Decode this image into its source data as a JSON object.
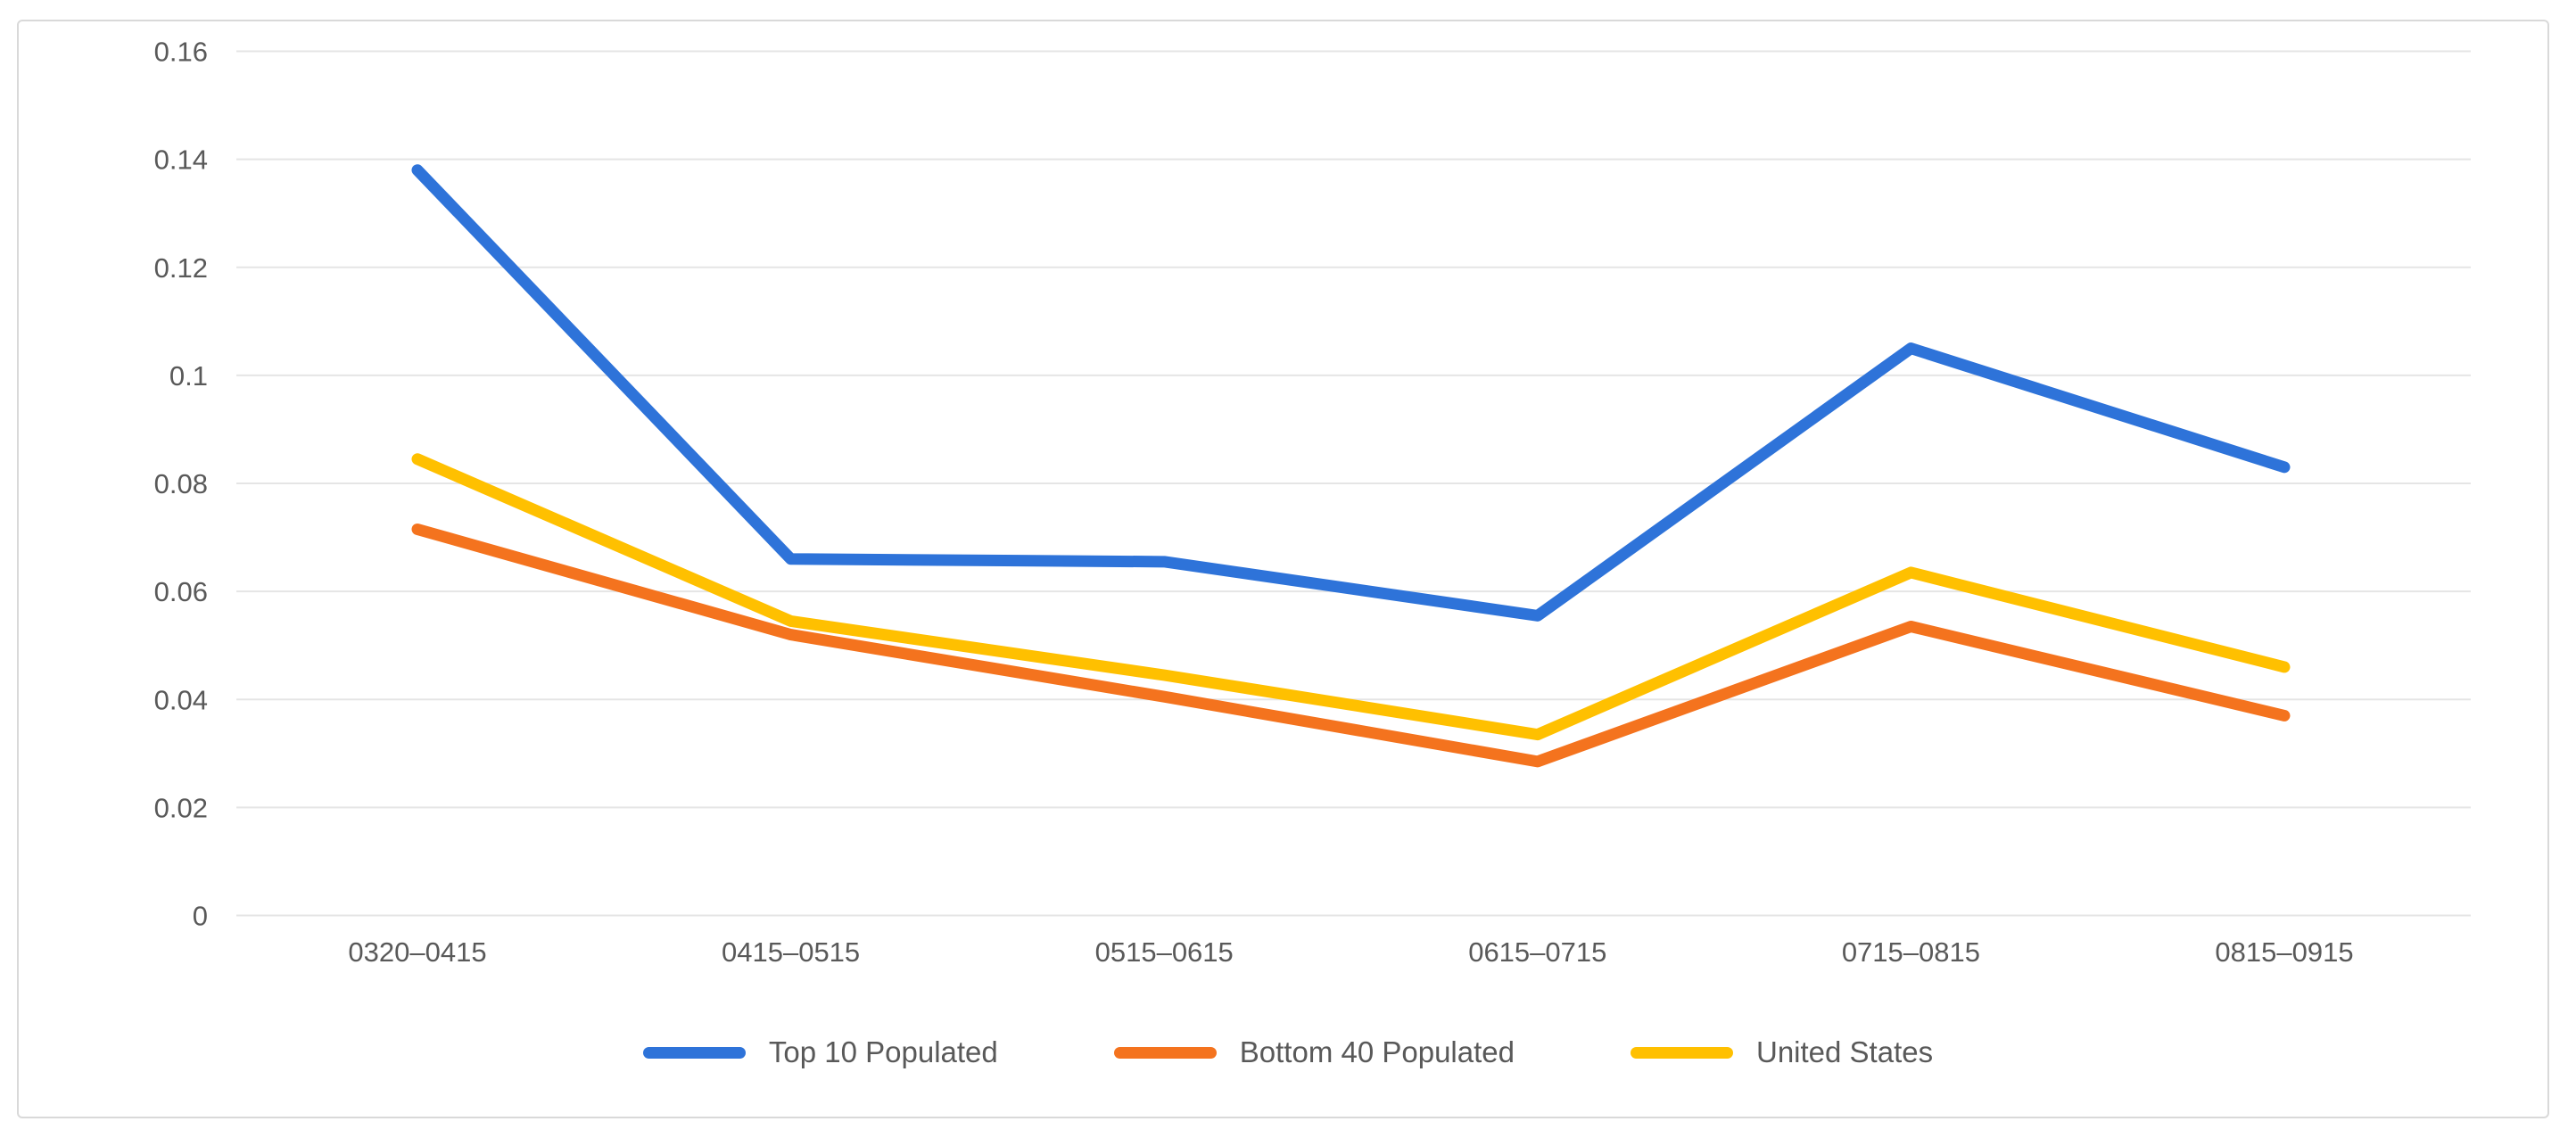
{
  "chart_data": {
    "type": "line",
    "categories": [
      "0320–0415",
      "0415–0515",
      "0515–0615",
      "0615–0715",
      "0715–0815",
      "0815–0915"
    ],
    "series": [
      {
        "name": "Top 10 Populated",
        "color": "#2e73d9",
        "values": [
          0.138,
          0.066,
          0.0655,
          0.0555,
          0.105,
          0.083
        ]
      },
      {
        "name": "Bottom 40 Populated",
        "color": "#f4731e",
        "values": [
          0.0715,
          0.052,
          0.0405,
          0.0285,
          0.0535,
          0.037
        ]
      },
      {
        "name": "United States",
        "color": "#ffc000",
        "values": [
          0.0845,
          0.0545,
          0.0445,
          0.0335,
          0.0635,
          0.046
        ]
      }
    ],
    "ylim": [
      0,
      0.16
    ],
    "y_tick_step": 0.02,
    "y_tick_labels": [
      "0",
      "0.02",
      "0.04",
      "0.06",
      "0.08",
      "0.1",
      "0.12",
      "0.14",
      "0.16"
    ],
    "grid": "horizontal",
    "legend_position": "bottom"
  },
  "style": {
    "background": "#ffffff",
    "border_color": "#d9d9d9",
    "gridline_color": "#e5e5e5",
    "axis_text_color": "#595959"
  }
}
